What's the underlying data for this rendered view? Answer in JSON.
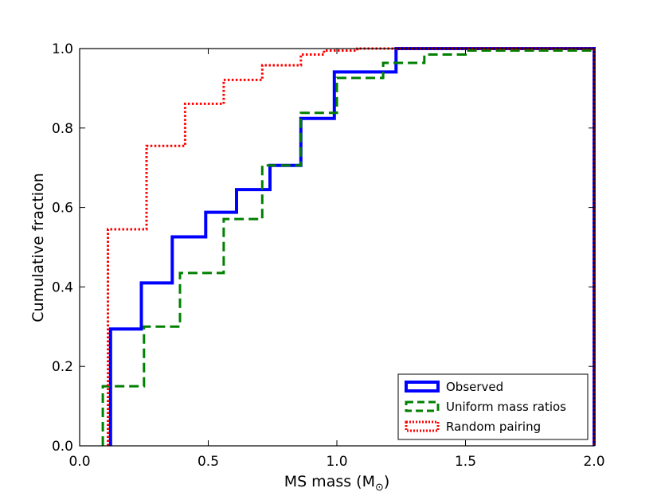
{
  "chart_data": {
    "type": "line",
    "step": true,
    "xlabel": "MS mass (M",
    "xlabel_subscript": "⊙",
    "xlabel_close": ")",
    "ylabel": "Cumulative fraction",
    "xlim": [
      0.0,
      2.0
    ],
    "ylim": [
      0.0,
      1.0
    ],
    "xticks": [
      "0.0",
      "0.5",
      "1.0",
      "1.5",
      "2.0"
    ],
    "yticks": [
      "0.0",
      "0.2",
      "0.4",
      "0.6",
      "0.8",
      "1.0"
    ],
    "xtick_values": [
      0.0,
      0.5,
      1.0,
      1.5,
      2.0
    ],
    "ytick_values": [
      0.0,
      0.2,
      0.4,
      0.6,
      0.8,
      1.0
    ],
    "legend_position": "lower-right",
    "grid": false,
    "series": [
      {
        "name": "Observed",
        "color": "#0000ff",
        "style": "solid",
        "x": [
          0.12,
          0.12,
          0.24,
          0.36,
          0.49,
          0.61,
          0.74,
          0.86,
          0.99,
          1.23,
          2.0,
          2.0
        ],
        "y": [
          0.0,
          0.294,
          0.41,
          0.526,
          0.588,
          0.645,
          0.706,
          0.824,
          0.941,
          1.0,
          1.0,
          0.0
        ]
      },
      {
        "name": "Uniform mass ratios",
        "color": "#008000",
        "style": "dashed",
        "x": [
          0.09,
          0.09,
          0.25,
          0.39,
          0.56,
          0.71,
          0.86,
          1.0,
          1.18,
          1.34,
          1.5,
          2.0
        ],
        "y": [
          0.0,
          0.15,
          0.3,
          0.435,
          0.571,
          0.706,
          0.838,
          0.926,
          0.964,
          0.985,
          0.995,
          1.0
        ]
      },
      {
        "name": "Random pairing",
        "color": "#ff0000",
        "style": "dotted",
        "x": [
          0.11,
          0.11,
          0.26,
          0.41,
          0.56,
          0.71,
          0.86,
          0.95,
          1.08,
          1.28,
          2.0,
          2.0
        ],
        "y": [
          0.0,
          0.545,
          0.755,
          0.861,
          0.921,
          0.958,
          0.985,
          0.995,
          1.0,
          1.0,
          1.0,
          0.0
        ]
      }
    ]
  }
}
